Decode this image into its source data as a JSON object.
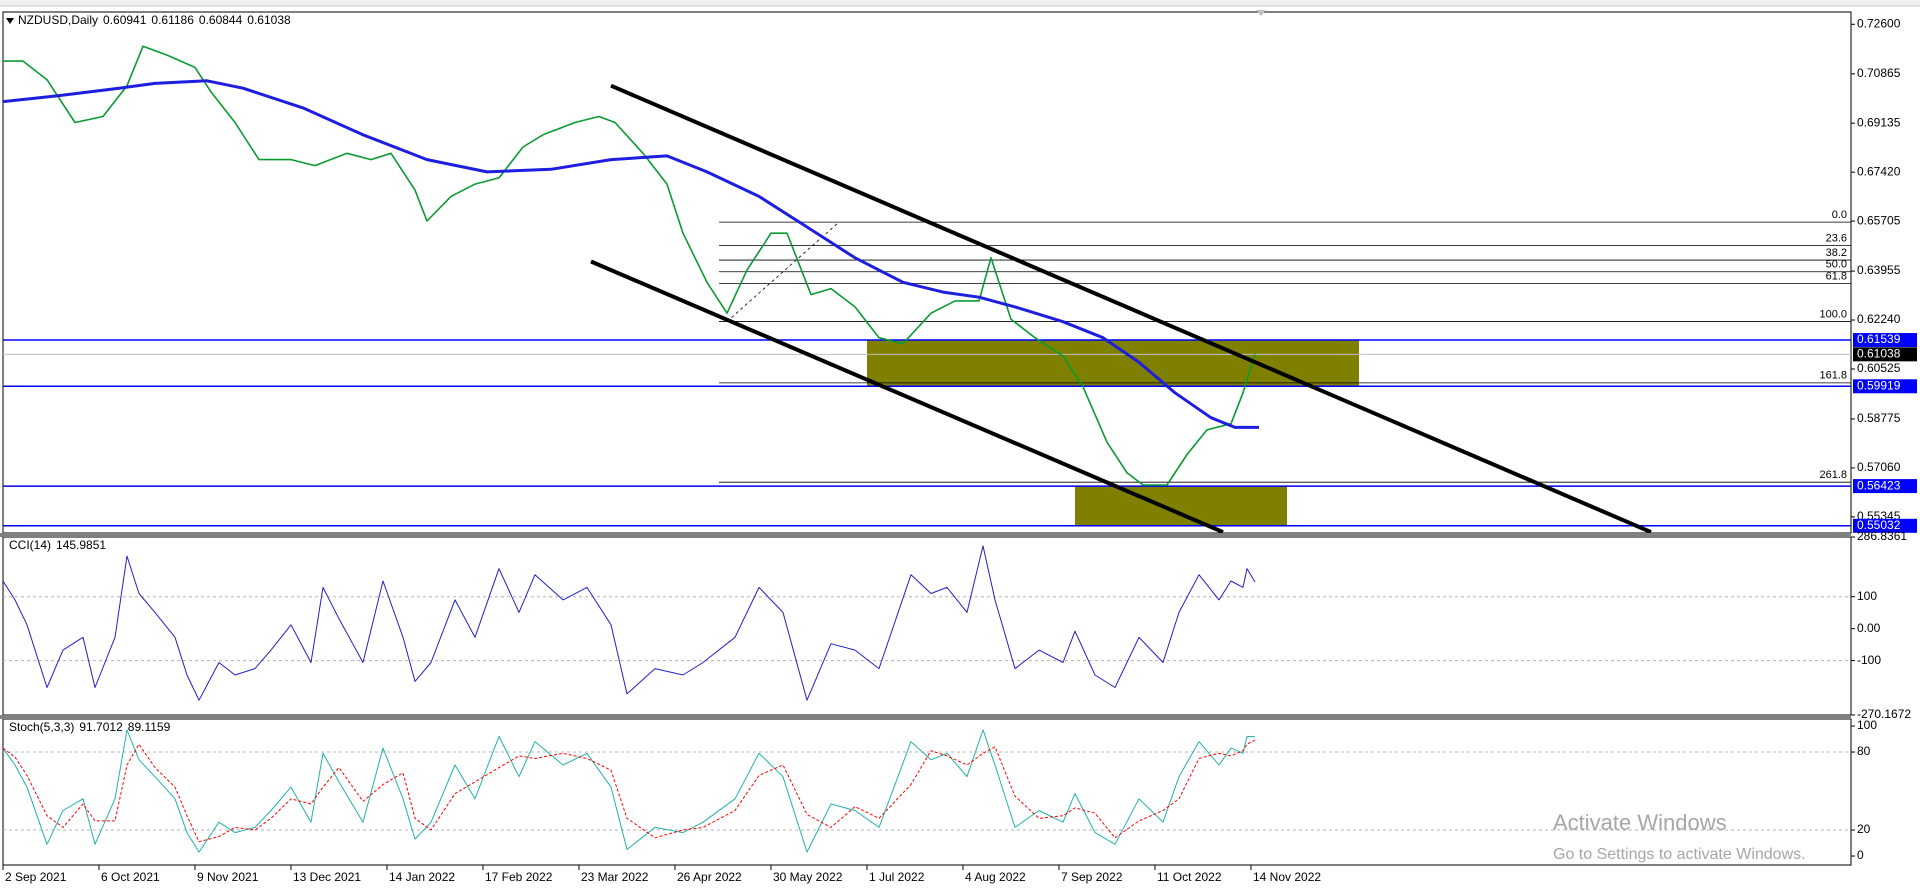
{
  "chart_data": [
    {
      "type": "line",
      "title": "NZDUSD,Daily",
      "header_values": [
        0.60941,
        0.61186,
        0.60844,
        0.61038
      ],
      "xlim": [
        0,
        462
      ],
      "xticks": [
        {
          "value": 0,
          "label": "2 Sep 2021"
        },
        {
          "value": 24,
          "label": "6 Oct 2021"
        },
        {
          "value": 48,
          "label": "9 Nov 2021"
        },
        {
          "value": 72,
          "label": "13 Dec 2021"
        },
        {
          "value": 96,
          "label": "14 Jan 2022"
        },
        {
          "value": 120,
          "label": "17 Feb 2022"
        },
        {
          "value": 144,
          "label": "23 Mar 2022"
        },
        {
          "value": 168,
          "label": "26 Apr 2022"
        },
        {
          "value": 192,
          "label": "30 May 2022"
        },
        {
          "value": 216,
          "label": "1 Jul 2022"
        },
        {
          "value": 240,
          "label": "4 Aug 2022"
        },
        {
          "value": 264,
          "label": "7 Sep 2022"
        },
        {
          "value": 288,
          "label": "11 Oct 2022"
        },
        {
          "value": 312,
          "label": "14 Nov 2022"
        }
      ],
      "ylim": [
        0.5478,
        0.7303
      ],
      "yticks": [
        {
          "value": 0.726,
          "label": "0.72600"
        },
        {
          "value": 0.70865,
          "label": "0.70865"
        },
        {
          "value": 0.69135,
          "label": "0.69135"
        },
        {
          "value": 0.6742,
          "label": "0.67420"
        },
        {
          "value": 0.65705,
          "label": "0.65705"
        },
        {
          "value": 0.63955,
          "label": "0.63955"
        },
        {
          "value": 0.6224,
          "label": "0.62240"
        },
        {
          "value": 0.60525,
          "label": "0.60525"
        },
        {
          "value": 0.58775,
          "label": "0.58775"
        },
        {
          "value": 0.5706,
          "label": "0.57060"
        },
        {
          "value": 0.55345,
          "label": "0.55345"
        }
      ],
      "series": [
        {
          "color": "#0a9a32",
          "width": 1.6,
          "x": [
            0,
            5,
            11,
            18,
            25,
            31,
            35,
            41,
            48,
            52,
            58,
            64,
            72,
            78,
            86,
            92,
            97,
            103,
            106,
            112,
            118,
            124,
            130,
            135,
            143,
            149,
            153,
            160,
            166,
            170,
            176,
            181,
            186,
            192,
            196,
            202,
            207,
            213,
            219,
            225,
            232,
            238,
            244,
            247,
            252,
            258,
            265,
            270,
            276,
            281,
            285,
            291,
            296,
            301,
            307,
            310,
            313
          ],
          "values": [
            0.7131,
            0.7131,
            0.7066,
            0.6916,
            0.6937,
            0.7045,
            0.7183,
            0.7152,
            0.7109,
            0.7023,
            0.6916,
            0.6786,
            0.6786,
            0.6765,
            0.6808,
            0.6786,
            0.6808,
            0.6679,
            0.6571,
            0.6657,
            0.67,
            0.6722,
            0.683,
            0.6873,
            0.6916,
            0.6937,
            0.6916,
            0.6808,
            0.67,
            0.6528,
            0.6356,
            0.6248,
            0.6399,
            0.6528,
            0.6528,
            0.6313,
            0.6334,
            0.627,
            0.6162,
            0.6141,
            0.6248,
            0.6291,
            0.6291,
            0.6442,
            0.6227,
            0.6162,
            0.6098,
            0.599,
            0.5796,
            0.5689,
            0.5646,
            0.5646,
            0.5753,
            0.5839,
            0.5861,
            0.5969,
            0.61038
          ]
        },
        {
          "color": "#1e1ee0",
          "width": 3,
          "x": [
            0,
            14,
            29,
            38,
            51,
            60,
            75,
            90,
            106,
            121,
            137,
            152,
            166,
            176,
            189,
            201,
            213,
            225,
            235,
            244,
            253,
            265,
            275,
            284,
            293,
            302,
            308,
            314
          ],
          "values": [
            0.6989,
            0.701,
            0.7036,
            0.7053,
            0.7062,
            0.7036,
            0.6967,
            0.6873,
            0.6786,
            0.6743,
            0.6752,
            0.6786,
            0.6799,
            0.6743,
            0.6657,
            0.655,
            0.6442,
            0.6356,
            0.6322,
            0.6304,
            0.627,
            0.6218,
            0.6162,
            0.6076,
            0.5969,
            0.5882,
            0.5848,
            0.5848
          ]
        }
      ],
      "zones": [
        {
          "x": [
            216,
            339
          ],
          "values": [
            0.61539,
            0.59919
          ],
          "color": "#808000"
        },
        {
          "x": [
            268,
            321
          ],
          "values": [
            0.56423,
            0.55032
          ],
          "color": "#808000"
        }
      ],
      "trendlines": [
        {
          "x": [
            152,
            412
          ],
          "values": [
            0.7045,
            0.5481
          ],
          "color": "#000000"
        },
        {
          "x": [
            147,
            305
          ],
          "values": [
            0.6429,
            0.5481
          ],
          "color": "#000000"
        }
      ],
      "fib_start": 179,
      "fib_line": {
        "x": [
          181,
          209
        ],
        "values": [
          0.6219,
          0.6567
        ]
      },
      "fib_levels": [
        {
          "label": "0.0",
          "value": 0.6567
        },
        {
          "label": "23.6",
          "value": 0.6485
        },
        {
          "label": "38.2",
          "value": 0.6434
        },
        {
          "label": "50.0",
          "value": 0.6393
        },
        {
          "label": "61.8",
          "value": 0.6352
        },
        {
          "label": "100.0",
          "value": 0.6219
        },
        {
          "label": "161.8",
          "value": 0.6004
        },
        {
          "label": "261.8",
          "value": 0.5656
        }
      ],
      "price_lines": [
        {
          "value": 0.61539,
          "color": "#0000ff"
        },
        {
          "value": 0.59919,
          "color": "#0000ff"
        },
        {
          "value": 0.56423,
          "color": "#0000ff"
        },
        {
          "value": 0.55032,
          "color": "#0000ff"
        }
      ],
      "current_price": 0.61038
    },
    {
      "type": "line",
      "title": "CCI(14)",
      "header_values": [
        145.9851
      ],
      "ylim": [
        -270.1672,
        286.8361
      ],
      "yticks": [
        286.8361,
        100,
        {
          "value": 0,
          "label": "0.00"
        },
        -100,
        -270.1672
      ],
      "levels": [
        100,
        -100
      ],
      "series": [
        {
          "color": "#2020c8",
          "width": 1,
          "x": [
            0,
            3,
            6,
            11,
            15,
            20,
            23,
            28,
            31,
            34,
            38,
            43,
            46,
            49,
            54,
            58,
            63,
            67,
            72,
            77,
            80,
            84,
            90,
            95,
            100,
            103,
            107,
            113,
            118,
            124,
            129,
            133,
            140,
            146,
            152,
            156,
            163,
            170,
            175,
            183,
            189,
            195,
            201,
            207,
            213,
            219,
            227,
            232,
            236,
            241,
            245,
            248,
            253,
            259,
            265,
            268,
            273,
            278,
            284,
            290,
            294,
            299,
            304,
            307,
            310,
            311,
            313
          ],
          "values": [
            149,
            90,
            12,
            -184,
            -67,
            -27,
            -184,
            -27,
            227,
            110,
            51,
            -27,
            -145,
            -224,
            -106,
            -145,
            -125,
            -67,
            12,
            -106,
            129,
            31,
            -106,
            149,
            -27,
            -165,
            -106,
            90,
            -27,
            188,
            51,
            169,
            90,
            129,
            12,
            -204,
            -125,
            -145,
            -106,
            -27,
            129,
            51,
            -224,
            -47,
            -67,
            -125,
            169,
            110,
            129,
            51,
            259,
            90,
            -125,
            -67,
            -106,
            -8,
            -145,
            -184,
            -27,
            -106,
            51,
            169,
            90,
            149,
            129,
            188,
            145.9851
          ]
        }
      ]
    },
    {
      "type": "line",
      "title": "Stoch(5,3,3)",
      "header_values": [
        91.7012,
        89.1159
      ],
      "ylim": [
        -6.9,
        105.4
      ],
      "yticks": [
        100,
        80,
        20,
        0
      ],
      "levels": [
        80,
        20
      ],
      "series": [
        {
          "color": "#20b2aa",
          "width": 1,
          "x": [
            0,
            3,
            6,
            11,
            15,
            20,
            23,
            28,
            31,
            34,
            38,
            43,
            46,
            49,
            54,
            58,
            63,
            67,
            72,
            77,
            80,
            84,
            90,
            95,
            100,
            103,
            107,
            113,
            118,
            124,
            129,
            133,
            140,
            146,
            152,
            156,
            163,
            170,
            175,
            183,
            189,
            195,
            201,
            207,
            213,
            219,
            227,
            232,
            236,
            241,
            245,
            248,
            253,
            259,
            265,
            268,
            273,
            278,
            284,
            290,
            294,
            299,
            304,
            307,
            310,
            311,
            313
          ],
          "values": [
            83,
            70,
            53,
            9,
            35,
            44,
            9,
            44,
            97,
            74,
            61,
            44,
            18,
            3,
            26,
            18,
            22,
            35,
            53,
            26,
            79,
            57,
            26,
            83,
            44,
            13,
            26,
            70,
            44,
            92,
            61,
            88,
            70,
            79,
            53,
            5,
            22,
            18,
            26,
            44,
            79,
            61,
            3,
            40,
            35,
            22,
            88,
            74,
            79,
            61,
            97,
            70,
            22,
            35,
            26,
            48,
            18,
            9,
            44,
            26,
            61,
            88,
            70,
            83,
            79,
            92,
            91.7012
          ]
        },
        {
          "color": "#ff0000",
          "width": 1,
          "dashed": true,
          "x": [
            0,
            3,
            6,
            11,
            15,
            20,
            23,
            28,
            31,
            34,
            38,
            43,
            46,
            49,
            54,
            58,
            63,
            67,
            72,
            77,
            80,
            84,
            90,
            95,
            100,
            103,
            107,
            113,
            118,
            124,
            129,
            133,
            140,
            146,
            152,
            156,
            163,
            170,
            175,
            183,
            189,
            195,
            201,
            207,
            213,
            219,
            227,
            232,
            236,
            241,
            245,
            248,
            253,
            259,
            265,
            268,
            273,
            278,
            284,
            290,
            294,
            299,
            304,
            307,
            310,
            311,
            313
          ],
          "values": [
            83,
            76,
            62,
            31,
            22,
            40,
            27,
            27,
            70,
            86,
            68,
            53,
            31,
            11,
            15,
            22,
            20,
            29,
            44,
            40,
            53,
            68,
            42,
            55,
            64,
            29,
            20,
            48,
            57,
            68,
            77,
            75,
            79,
            75,
            66,
            29,
            14,
            20,
            22,
            35,
            62,
            70,
            32,
            22,
            38,
            29,
            55,
            81,
            77,
            70,
            79,
            84,
            46,
            29,
            31,
            37,
            33,
            14,
            27,
            35,
            44,
            75,
            79,
            77,
            81,
            86,
            89.1159
          ]
        }
      ]
    }
  ],
  "watermark": {
    "title": "Activate Windows",
    "subtitle": "Go to Settings to activate Windows."
  }
}
